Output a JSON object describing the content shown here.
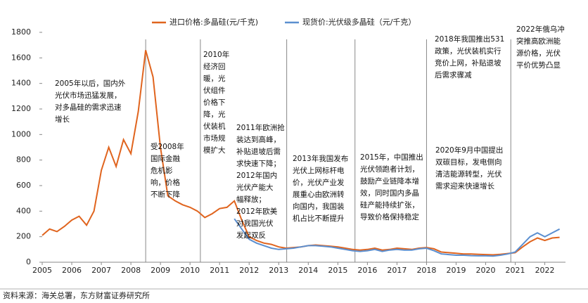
{
  "chart_data": {
    "type": "line",
    "legend_position": "top",
    "x": [
      2005,
      2005.25,
      2005.5,
      2005.75,
      2006,
      2006.25,
      2006.5,
      2006.75,
      2007,
      2007.25,
      2007.5,
      2007.75,
      2008,
      2008.25,
      2008.5,
      2008.75,
      2009,
      2009.25,
      2009.5,
      2009.75,
      2010,
      2010.25,
      2010.5,
      2010.75,
      2011,
      2011.25,
      2011.5,
      2011.75,
      2012,
      2012.25,
      2012.5,
      2012.75,
      2013,
      2013.25,
      2013.5,
      2013.75,
      2014,
      2014.25,
      2014.5,
      2014.75,
      2015,
      2015.25,
      2015.5,
      2015.75,
      2016,
      2016.25,
      2016.5,
      2016.75,
      2017,
      2017.25,
      2017.5,
      2017.75,
      2018,
      2018.25,
      2018.5,
      2018.75,
      2019,
      2019.25,
      2019.5,
      2019.75,
      2020,
      2020.25,
      2020.5,
      2020.75,
      2021,
      2021.25,
      2021.5,
      2021.75,
      2022,
      2022.25,
      2022.5
    ],
    "series": [
      {
        "name": "进口价格:多晶硅(元/千克)",
        "color": "#e0641e",
        "values": [
          210,
          260,
          240,
          280,
          330,
          360,
          290,
          400,
          720,
          900,
          750,
          960,
          850,
          1180,
          1660,
          1450,
          900,
          520,
          480,
          450,
          430,
          400,
          350,
          380,
          420,
          430,
          480,
          330,
          200,
          170,
          150,
          140,
          120,
          110,
          115,
          120,
          130,
          135,
          130,
          125,
          120,
          110,
          100,
          95,
          100,
          110,
          95,
          100,
          110,
          105,
          100,
          110,
          115,
          105,
          80,
          75,
          70,
          65,
          65,
          62,
          60,
          58,
          62,
          68,
          75,
          120,
          160,
          190,
          170,
          190,
          195
        ]
      },
      {
        "name": "现货价:光伏级多晶硅（元/千克）",
        "color": "#5b8fd0",
        "values": [
          null,
          null,
          null,
          null,
          null,
          null,
          null,
          null,
          null,
          null,
          null,
          null,
          null,
          null,
          null,
          null,
          null,
          null,
          null,
          null,
          null,
          null,
          null,
          null,
          null,
          null,
          340,
          260,
          180,
          150,
          130,
          110,
          100,
          105,
          110,
          120,
          130,
          130,
          125,
          120,
          110,
          100,
          90,
          85,
          90,
          100,
          85,
          95,
          100,
          95,
          95,
          105,
          110,
          90,
          65,
          60,
          55,
          55,
          52,
          50,
          50,
          48,
          55,
          65,
          80,
          140,
          200,
          230,
          200,
          230,
          260
        ]
      }
    ],
    "xlim": [
      2005,
      2022.7
    ],
    "xticks": [
      2005,
      2006,
      2007,
      2008,
      2009,
      2010,
      2011,
      2012,
      2013,
      2014,
      2015,
      2016,
      2017,
      2018,
      2019,
      2020,
      2021,
      2022
    ],
    "ylim": [
      0,
      1800
    ],
    "yticks": [
      0,
      200,
      400,
      600,
      800,
      1000,
      1200,
      1400,
      1600,
      1800
    ],
    "event_lines": [
      2008.5,
      2010.35,
      2013.27,
      2015.58,
      2018,
      2020.85
    ],
    "annotations": [
      [
        "2005年以后，国内外",
        "光伏市场迅猛发展，",
        "对多晶硅的需求迅速",
        "增长"
      ],
      [
        "受2008年",
        "国际金融",
        "危机影",
        "响，价格",
        "不断下降"
      ],
      [
        "2010年",
        "经济回",
        "暖，光",
        "伏组件",
        "价格下",
        "降，光",
        "伏装机",
        "市场规",
        "模扩大"
      ],
      [
        "2011年欧洲抢",
        "装达到高峰，",
        "补贴退坡后需",
        "求快速下降；",
        "2012年国内",
        "光伏产能大",
        "幅释放；",
        "2012年欧美",
        "对我国光伏",
        "发起双反"
      ],
      [
        "2013年我国发布",
        "光伏上网标杆电",
        "价，光伏产业发",
        "展重心由欧洲转",
        "向国内，我国装",
        "机占比不断提升"
      ],
      [
        "2015年，中国推出",
        "光伏领跑者计划，",
        "鼓励产业链降本增",
        "效，同时国内多晶",
        "硅产能持续扩张，",
        "导致价格保持稳定"
      ],
      [
        "2018年我国推出531",
        "政策，光伏装机实行",
        "竞价上网，补贴退坡",
        "后需求骤减"
      ],
      [
        "2020年9月中国提出",
        "双碳目标，发电侧向",
        "清洁能源转型，光伏",
        "需求迎来快速增长"
      ],
      [
        "2022年俄乌冲",
        "突推高欧洲能",
        "源价格，光伏",
        "平价优势凸显"
      ]
    ],
    "source": "资料来源：海关总署，东方财富证券研究所"
  }
}
